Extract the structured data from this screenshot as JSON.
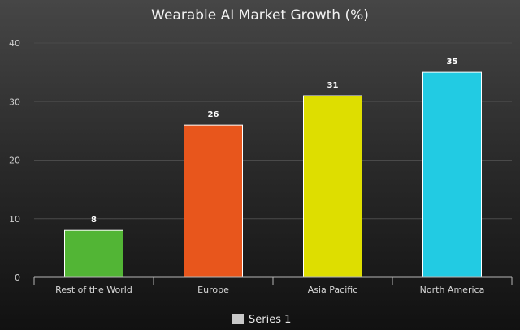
{
  "chart_data": {
    "type": "bar",
    "title": "Wearable AI Market Growth (%)",
    "categories": [
      "Rest of the World",
      "Europe",
      "Asia Pacific",
      "North America"
    ],
    "series": [
      {
        "name": "Series 1",
        "values": [
          8,
          26,
          31,
          35
        ],
        "colors": [
          "#52b535",
          "#e8561c",
          "#dede00",
          "#22cbe3"
        ]
      }
    ],
    "y_ticks": [
      "0",
      "10",
      "20",
      "30",
      "40"
    ],
    "ylim": [
      0,
      40
    ],
    "grid": true,
    "legend": {
      "position": "bottom-center",
      "swatch_color": "#c8c8c8"
    }
  }
}
